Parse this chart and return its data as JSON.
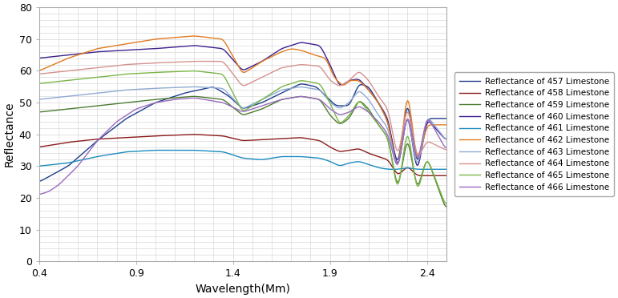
{
  "title": "",
  "xlabel": "Wavelength(Mm)",
  "ylabel": "Reflectance",
  "xlim": [
    0.4,
    2.5
  ],
  "ylim": [
    0,
    80
  ],
  "xticks": [
    0.4,
    0.9,
    1.4,
    1.9,
    2.4
  ],
  "yticks": [
    0,
    10,
    20,
    30,
    40,
    50,
    60,
    70,
    80
  ],
  "series": [
    {
      "label": "Reflectance of 457 Limestone",
      "color": "#1f3d8c",
      "linewidth": 1.0
    },
    {
      "label": "Reflectance of 458 Limestone",
      "color": "#8b1a1a",
      "linewidth": 1.0
    },
    {
      "label": "Reflectance of 459 Limestone",
      "color": "#4a7c2f",
      "linewidth": 1.0
    },
    {
      "label": "Reflectance of 460 Limestone",
      "color": "#3d1f8c",
      "linewidth": 1.0
    },
    {
      "label": "Reflectance of 461 Limestone",
      "color": "#1a8bbf",
      "linewidth": 1.0
    },
    {
      "label": "Reflectance of 462 Limestone",
      "color": "#e07b20",
      "linewidth": 1.0
    },
    {
      "label": "Reflectance of 463 Limestone",
      "color": "#8faad4",
      "linewidth": 1.0
    },
    {
      "label": "Reflectance of 464 Limestone",
      "color": "#d4928f",
      "linewidth": 1.0
    },
    {
      "label": "Reflectance of 465 Limestone",
      "color": "#7ab648",
      "linewidth": 1.0
    },
    {
      "label": "Reflectance of 466 Limestone",
      "color": "#9b6bbf",
      "linewidth": 1.0
    }
  ],
  "background_color": "#ffffff",
  "grid_color": "#d0d0d0",
  "figsize": [
    7.71,
    3.72
  ],
  "dpi": 100
}
